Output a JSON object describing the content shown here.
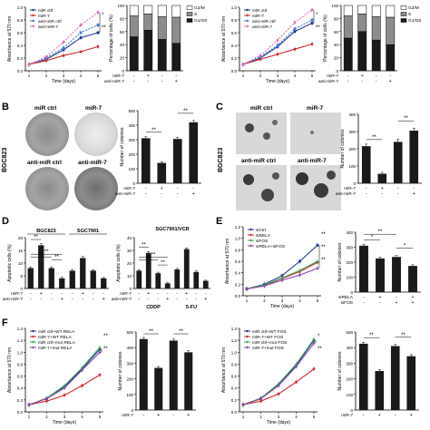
{
  "panels": {
    "A_left": {
      "chart_data": {
        "type": "line",
        "x": [
          1,
          2,
          3,
          4,
          5
        ],
        "xlabel": "Time (days)",
        "ylabel": "Absorbance at 570 nm",
        "yticks": [
          "0.0",
          "0.2",
          "0.4",
          "0.6",
          "0.8",
          "1.0"
        ],
        "ylim": [
          0,
          1.0
        ],
        "xticks": [
          "1",
          "2",
          "3",
          "4",
          "5"
        ],
        "series": [
          {
            "name": "miR ctrl",
            "values": [
              0.1,
              0.18,
              0.33,
              0.52,
              0.6
            ],
            "color": "#1f3a93",
            "dash": false,
            "marker": "square"
          },
          {
            "name": "miR-7",
            "values": [
              0.1,
              0.16,
              0.24,
              0.3,
              0.38
            ],
            "color": "#d12a2a",
            "dash": false,
            "marker": "circle"
          },
          {
            "name": "anti-miR ctrl",
            "values": [
              0.1,
              0.2,
              0.36,
              0.6,
              0.72
            ],
            "color": "#3a7bd5",
            "dash": true,
            "marker": "square"
          },
          {
            "name": "anti-miR-7",
            "values": [
              0.1,
              0.22,
              0.45,
              0.72,
              0.92
            ],
            "color": "#e06ab5",
            "dash": true,
            "marker": "circle"
          }
        ],
        "annotations": [
          "*",
          "**"
        ]
      }
    },
    "A_mid": {
      "chart_data": {
        "type": "bar",
        "ylabel": "Percentage of cells (%)",
        "yticks": [
          "0",
          "20",
          "40",
          "60",
          "80",
          "100"
        ],
        "ylim": [
          0,
          100
        ],
        "stack_series": [
          {
            "name": "G1/G0",
            "color": "#1a1a1a",
            "values": [
              52,
              62,
              48,
              42
            ]
          },
          {
            "name": "S",
            "color": "#8c8c8c",
            "values": [
              32,
              25,
              35,
              40
            ]
          },
          {
            "name": "G2/M",
            "color": "#ffffff",
            "values": [
              16,
              13,
              17,
              18
            ]
          }
        ],
        "rows": [
          {
            "label": "miR-7",
            "signs": [
              "-",
              "+",
              "-",
              "-"
            ]
          },
          {
            "label": "anti-miR-7",
            "signs": [
              "-",
              "-",
              "-",
              "+"
            ]
          }
        ]
      }
    },
    "A_right_line": {
      "chart_data": {
        "type": "line",
        "x": [
          1,
          2,
          3,
          4,
          5
        ],
        "xlabel": "Time (days)",
        "ylabel": "Absorbance at 570 nm",
        "yticks": [
          "0.0",
          "0.2",
          "0.4",
          "0.6",
          "0.8",
          "1.0"
        ],
        "ylim": [
          0,
          1.0
        ],
        "xticks": [
          "1",
          "2",
          "3",
          "4",
          "5"
        ],
        "series": [
          {
            "name": "miR ctrl",
            "values": [
              0.1,
              0.2,
              0.38,
              0.62,
              0.75
            ],
            "color": "#1f3a93",
            "dash": false,
            "marker": "square"
          },
          {
            "name": "miR-7",
            "values": [
              0.1,
              0.18,
              0.26,
              0.34,
              0.42
            ],
            "color": "#d12a2a",
            "dash": false,
            "marker": "circle"
          },
          {
            "name": "anti-miR ctrl",
            "values": [
              0.1,
              0.22,
              0.4,
              0.66,
              0.8
            ],
            "color": "#3a7bd5",
            "dash": true,
            "marker": "square"
          },
          {
            "name": "anti-miR-7",
            "values": [
              0.1,
              0.24,
              0.48,
              0.76,
              0.96
            ],
            "color": "#e06ab5",
            "dash": true,
            "marker": "circle"
          }
        ],
        "annotations": [
          "*",
          "**"
        ]
      }
    },
    "A_right_bar": {
      "chart_data": {
        "type": "bar",
        "ylabel": "Percentage of cells (%)",
        "yticks": [
          "0",
          "20",
          "40",
          "60",
          "80",
          "100"
        ],
        "ylim": [
          0,
          100
        ],
        "stack_series": [
          {
            "name": "G1/G0",
            "color": "#1a1a1a",
            "values": [
              50,
              60,
              47,
              40
            ]
          },
          {
            "name": "S",
            "color": "#8c8c8c",
            "values": [
              34,
              27,
              36,
              42
            ]
          },
          {
            "name": "G2/M",
            "color": "#ffffff",
            "values": [
              16,
              13,
              17,
              18
            ]
          }
        ],
        "rows": [
          {
            "label": "miR-7",
            "signs": [
              "-",
              "+",
              "-",
              "-"
            ]
          },
          {
            "label": "anti-miR-7",
            "signs": [
              "-",
              "-",
              "-",
              "+"
            ]
          }
        ]
      }
    },
    "B": {
      "label": "B",
      "cell_line": "BGC823",
      "plate_labels": [
        "miR ctrl",
        "miR-7",
        "anti-miR ctrl",
        "anti-miR-7"
      ],
      "chart_data": {
        "type": "bar",
        "ylabel": "Number of colonies",
        "yticks": [
          "0",
          "100",
          "200",
          "300",
          "400",
          "500"
        ],
        "ylim": [
          0,
          500
        ],
        "values": [
          310,
          140,
          305,
          420
        ],
        "errors": [
          10,
          8,
          10,
          12
        ],
        "colors": [
          "#1a1a1a",
          "#1a1a1a",
          "#1a1a1a",
          "#1a1a1a"
        ],
        "rows": [
          {
            "label": "miR-7",
            "signs": [
              "-",
              "+",
              "-",
              "-"
            ]
          },
          {
            "label": "anti-miR-7",
            "signs": [
              "-",
              "-",
              "-",
              "+"
            ]
          }
        ],
        "annotations": [
          "**",
          "**"
        ]
      }
    },
    "C": {
      "label": "C",
      "cell_line": "BGC823",
      "image_labels": [
        "miR ctrl",
        "miR-7",
        "anti-miR ctrl",
        "anti-miR-7"
      ],
      "chart_data": {
        "type": "bar",
        "ylabel": "Number of colonies",
        "yticks": [
          "0",
          "100",
          "200",
          "300",
          "400"
        ],
        "ylim": [
          0,
          400
        ],
        "values": [
          215,
          55,
          240,
          305
        ],
        "errors": [
          12,
          8,
          14,
          15
        ],
        "colors": [
          "#1a1a1a",
          "#1a1a1a",
          "#1a1a1a",
          "#1a1a1a"
        ],
        "rows": [
          {
            "label": "miR-7",
            "signs": [
              "-",
              "+",
              "-",
              "-"
            ]
          },
          {
            "label": "anti-miR-7",
            "signs": [
              "-",
              "-",
              "-",
              "+"
            ]
          }
        ],
        "annotations": [
          "**",
          "**"
        ]
      }
    },
    "D_left": {
      "label": "D",
      "groups": [
        "BGC823",
        "SGC7901"
      ],
      "chart_data": {
        "type": "bar",
        "ylabel": "Apoptotic cells (%)",
        "yticks": [
          "0",
          "5",
          "10",
          "15",
          "20"
        ],
        "ylim": [
          0,
          20
        ],
        "values": [
          8,
          17,
          8,
          4,
          7,
          12,
          7,
          4
        ],
        "errors": [
          0.5,
          0.6,
          0.5,
          0.4,
          0.5,
          0.6,
          0.4,
          0.3
        ],
        "rows": [
          {
            "label": "miR-7",
            "signs": [
              "-",
              "+",
              "-",
              "-",
              "-",
              "+",
              "-",
              "-"
            ]
          },
          {
            "label": "anti-miR-7",
            "signs": [
              "-",
              "-",
              "-",
              "+",
              "-",
              "-",
              "-",
              "+"
            ]
          }
        ],
        "annotations": [
          "**",
          "**",
          "**",
          "**"
        ]
      }
    },
    "D_right": {
      "title": "SGC7901/VCR",
      "groups": [
        "CDDP",
        "5-FU"
      ],
      "chart_data": {
        "type": "bar",
        "ylabel": "Apoptotic cells (%)",
        "yticks": [
          "0",
          "10",
          "20",
          "30",
          "40"
        ],
        "ylim": [
          0,
          40
        ],
        "values": [
          14,
          28,
          12,
          4,
          15,
          31,
          13,
          6
        ],
        "errors": [
          0.8,
          1.0,
          0.8,
          0.4,
          0.8,
          1.0,
          0.8,
          0.5
        ],
        "rows": [
          {
            "label": "miR-7",
            "signs": [
              "-",
              "+",
              "-",
              "-",
              "-",
              "+",
              "-",
              "-"
            ]
          },
          {
            "label": "anti-miR-7",
            "signs": [
              "-",
              "-",
              "-",
              "+",
              "-",
              "-",
              "-",
              "+"
            ]
          }
        ],
        "annotations": [
          "**",
          "**",
          "**",
          "**"
        ]
      }
    },
    "E_line": {
      "label": "E",
      "chart_data": {
        "type": "line",
        "x": [
          1,
          2,
          3,
          4,
          5
        ],
        "xlabel": "Time (days)",
        "ylabel": "Absorbance at 570 nm",
        "yticks": [
          "0.0",
          "0.2",
          "0.4",
          "0.6",
          "0.8",
          "1.0",
          "1.2"
        ],
        "ylim": [
          0,
          1.2
        ],
        "xticks": [
          "1",
          "2",
          "3",
          "4",
          "5"
        ],
        "series": [
          {
            "name": "siCtrl",
            "values": [
              0.12,
              0.2,
              0.35,
              0.6,
              0.88
            ],
            "color": "#1f3a93",
            "dash": false,
            "marker": "square"
          },
          {
            "name": "siRELA",
            "values": [
              0.12,
              0.18,
              0.3,
              0.42,
              0.58
            ],
            "color": "#d12a2a",
            "dash": false,
            "marker": "circle"
          },
          {
            "name": "siFOS",
            "values": [
              0.12,
              0.19,
              0.31,
              0.44,
              0.6
            ],
            "color": "#3aa655",
            "dash": false,
            "marker": "triangle"
          },
          {
            "name": "siRELA+siFOS",
            "values": [
              0.12,
              0.17,
              0.27,
              0.36,
              0.48
            ],
            "color": "#8e44ad",
            "dash": false,
            "marker": "diamond"
          }
        ],
        "annotations": [
          "**",
          "**",
          "**"
        ]
      }
    },
    "E_bar": {
      "chart_data": {
        "type": "bar",
        "ylabel": "Number of colonies",
        "yticks": [
          "0",
          "100",
          "200",
          "300",
          "400"
        ],
        "ylim": [
          0,
          400
        ],
        "values": [
          310,
          225,
          235,
          175
        ],
        "errors": [
          10,
          8,
          9,
          8
        ],
        "rows": [
          {
            "label": "siRELA",
            "signs": [
              "-",
              "+",
              "-",
              "+"
            ]
          },
          {
            "label": "siFOS",
            "signs": [
              "-",
              "-",
              "+",
              "+"
            ]
          }
        ],
        "annotations": [
          "*",
          "*",
          "**"
        ]
      }
    },
    "F_line1": {
      "label": "F",
      "chart_data": {
        "type": "line",
        "x": [
          1,
          2,
          3,
          4,
          5
        ],
        "xlabel": "Time (days)",
        "ylabel": "Absorbance at 570 nm",
        "yticks": [
          "0.0",
          "0.2",
          "0.4",
          "0.6",
          "0.8",
          "1.0",
          "1.2",
          "1.4"
        ],
        "ylim": [
          0,
          1.4
        ],
        "xticks": [
          "1",
          "2",
          "3",
          "4",
          "5"
        ],
        "series": [
          {
            "name": "miR ctrl+WT RELA",
            "values": [
              0.12,
              0.22,
              0.42,
              0.72,
              1.05
            ],
            "color": "#1f3a93",
            "dash": false,
            "marker": "square"
          },
          {
            "name": "miR-7+WT RELA",
            "values": [
              0.12,
              0.18,
              0.28,
              0.44,
              0.62
            ],
            "color": "#d12a2a",
            "dash": false,
            "marker": "circle"
          },
          {
            "name": "miR ctrl+mut RELA",
            "values": [
              0.12,
              0.23,
              0.44,
              0.74,
              1.08
            ],
            "color": "#3aa655",
            "dash": false,
            "marker": "triangle"
          },
          {
            "name": "miR-7+mut RELA",
            "values": [
              0.12,
              0.22,
              0.4,
              0.7,
              1.0
            ],
            "color": "#8e44ad",
            "dash": false,
            "marker": "diamond"
          }
        ],
        "annotations": [
          "**",
          "**"
        ]
      }
    },
    "F_bar1": {
      "chart_data": {
        "type": "bar",
        "ylabel": "Number of colonies",
        "yticks": [
          "0",
          "100",
          "200",
          "300",
          "400",
          "500"
        ],
        "ylim": [
          0,
          500
        ],
        "values": [
          455,
          270,
          445,
          370
        ],
        "errors": [
          10,
          9,
          10,
          10
        ],
        "rows": [
          {
            "label": "miR-7",
            "signs": [
              "-",
              "+",
              "-",
              "+"
            ]
          }
        ],
        "annotations": [
          "**",
          "**"
        ]
      }
    },
    "F_line2": {
      "chart_data": {
        "type": "line",
        "x": [
          1,
          2,
          3,
          4,
          5
        ],
        "xlabel": "Time (days)",
        "ylabel": "Absorbance at 570 nm",
        "yticks": [
          "0.0",
          "0.2",
          "0.4",
          "0.6",
          "0.8",
          "1.0",
          "1.2",
          "1.4"
        ],
        "ylim": [
          0,
          1.4
        ],
        "xticks": [
          "1",
          "2",
          "3",
          "4",
          "5"
        ],
        "series": [
          {
            "name": "miR ctrl+WT FOS",
            "values": [
              0.12,
              0.22,
              0.45,
              0.78,
              1.2
            ],
            "color": "#1f3a93",
            "dash": false,
            "marker": "square"
          },
          {
            "name": "miR-7+WT FOS",
            "values": [
              0.12,
              0.18,
              0.3,
              0.5,
              0.72
            ],
            "color": "#d12a2a",
            "dash": false,
            "marker": "circle"
          },
          {
            "name": "miR ctrl+mut FOS",
            "values": [
              0.12,
              0.23,
              0.47,
              0.8,
              1.22
            ],
            "color": "#3aa655",
            "dash": false,
            "marker": "triangle"
          },
          {
            "name": "miR-7+mut FOS",
            "values": [
              0.12,
              0.22,
              0.44,
              0.76,
              1.15
            ],
            "color": "#8e44ad",
            "dash": false,
            "marker": "diamond"
          }
        ],
        "annotations": [
          "*",
          "**"
        ]
      }
    },
    "F_bar2": {
      "chart_data": {
        "type": "bar",
        "ylabel": "Number of colonies",
        "yticks": [
          "0",
          "100",
          "200",
          "300",
          "400",
          "500"
        ],
        "ylim": [
          0,
          500
        ],
        "values": [
          425,
          250,
          410,
          345
        ],
        "errors": [
          10,
          9,
          10,
          10
        ],
        "rows": [
          {
            "label": "miR-7",
            "signs": [
              "-",
              "+",
              "-",
              "+"
            ]
          }
        ],
        "annotations": [
          "**",
          "**"
        ]
      }
    }
  }
}
